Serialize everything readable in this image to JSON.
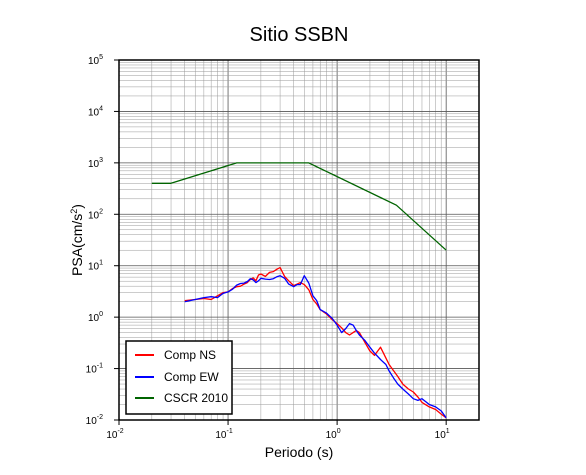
{
  "chart_data": {
    "type": "line",
    "title": "Sitio SSBN",
    "xlabel": "Periodo (s)",
    "ylabel_base": "PSA(cm/s",
    "ylabel_exp": "2",
    "ylabel_close": ")",
    "x_scale": "log",
    "y_scale": "log",
    "xlim": [
      0.01,
      20
    ],
    "ylim": [
      0.01,
      100000
    ],
    "x_ticks": [
      {
        "base": "10",
        "exp": "-2",
        "value": 0.01
      },
      {
        "base": "10",
        "exp": "-1",
        "value": 0.1
      },
      {
        "base": "10",
        "exp": "0",
        "value": 1
      },
      {
        "base": "10",
        "exp": "1",
        "value": 10
      }
    ],
    "y_ticks": [
      {
        "base": "10",
        "exp": "-2",
        "value": 0.01
      },
      {
        "base": "10",
        "exp": "-1",
        "value": 0.1
      },
      {
        "base": "10",
        "exp": "0",
        "value": 1
      },
      {
        "base": "10",
        "exp": "1",
        "value": 10
      },
      {
        "base": "10",
        "exp": "2",
        "value": 100
      },
      {
        "base": "10",
        "exp": "3",
        "value": 1000
      },
      {
        "base": "10",
        "exp": "4",
        "value": 10000
      },
      {
        "base": "10",
        "exp": "5",
        "value": 100000
      }
    ],
    "grid": true,
    "legend_position": "bottom-left",
    "series": [
      {
        "name": "Comp NS",
        "color": "#ff0000",
        "x": [
          0.04,
          0.05,
          0.06,
          0.07,
          0.08,
          0.09,
          0.1,
          0.11,
          0.12,
          0.13,
          0.14,
          0.15,
          0.16,
          0.17,
          0.18,
          0.19,
          0.2,
          0.22,
          0.24,
          0.26,
          0.28,
          0.3,
          0.33,
          0.36,
          0.4,
          0.43,
          0.46,
          0.5,
          0.55,
          0.6,
          0.65,
          0.7,
          0.8,
          0.9,
          1.0,
          1.1,
          1.2,
          1.3,
          1.4,
          1.5,
          1.6,
          1.8,
          2.0,
          2.2,
          2.5,
          2.8,
          3.0,
          3.3,
          3.6,
          4.0,
          4.5,
          5.0,
          5.5,
          6.0,
          7.0,
          8.0,
          9.0,
          10.0
        ],
        "y": [
          2.1,
          2.2,
          2.3,
          2.2,
          2.6,
          3.0,
          3.1,
          3.6,
          3.9,
          4.0,
          4.4,
          4.7,
          5.4,
          5.8,
          5.1,
          6.6,
          6.9,
          6.2,
          7.4,
          7.7,
          8.5,
          9.2,
          6.2,
          5.1,
          4.1,
          4.4,
          4.7,
          4.3,
          3.4,
          2.2,
          1.8,
          1.4,
          1.15,
          0.9,
          0.75,
          0.62,
          0.5,
          0.45,
          0.5,
          0.55,
          0.5,
          0.32,
          0.22,
          0.18,
          0.26,
          0.16,
          0.12,
          0.09,
          0.07,
          0.05,
          0.04,
          0.035,
          0.028,
          0.022,
          0.018,
          0.016,
          0.013,
          0.011
        ]
      },
      {
        "name": "Comp EW",
        "color": "#0000ff",
        "x": [
          0.04,
          0.05,
          0.06,
          0.07,
          0.08,
          0.09,
          0.1,
          0.11,
          0.12,
          0.13,
          0.14,
          0.15,
          0.16,
          0.17,
          0.18,
          0.19,
          0.2,
          0.22,
          0.24,
          0.26,
          0.28,
          0.3,
          0.33,
          0.36,
          0.4,
          0.43,
          0.46,
          0.5,
          0.55,
          0.6,
          0.65,
          0.7,
          0.8,
          0.9,
          1.0,
          1.1,
          1.2,
          1.3,
          1.4,
          1.5,
          1.6,
          1.8,
          2.0,
          2.2,
          2.5,
          2.8,
          3.0,
          3.3,
          3.6,
          4.0,
          4.5,
          5.0,
          5.5,
          6.0,
          7.0,
          8.0,
          9.0,
          10.0
        ],
        "y": [
          2.0,
          2.2,
          2.4,
          2.5,
          2.4,
          2.9,
          3.1,
          3.5,
          4.2,
          4.5,
          4.6,
          4.9,
          5.6,
          5.3,
          4.7,
          5.1,
          5.7,
          5.5,
          5.4,
          5.6,
          6.1,
          6.4,
          5.7,
          4.4,
          3.9,
          4.3,
          4.3,
          6.4,
          4.6,
          2.6,
          2.1,
          1.4,
          1.2,
          0.95,
          0.7,
          0.5,
          0.6,
          0.75,
          0.7,
          0.55,
          0.45,
          0.35,
          0.26,
          0.2,
          0.15,
          0.12,
          0.09,
          0.065,
          0.05,
          0.04,
          0.032,
          0.026,
          0.024,
          0.026,
          0.02,
          0.018,
          0.015,
          0.011
        ]
      },
      {
        "name": "CSCR 2010",
        "color": "#006400",
        "x": [
          0.02,
          0.03,
          0.12,
          0.55,
          3.5,
          10.0
        ],
        "y": [
          400,
          400,
          1000,
          1000,
          150,
          20
        ]
      }
    ]
  }
}
